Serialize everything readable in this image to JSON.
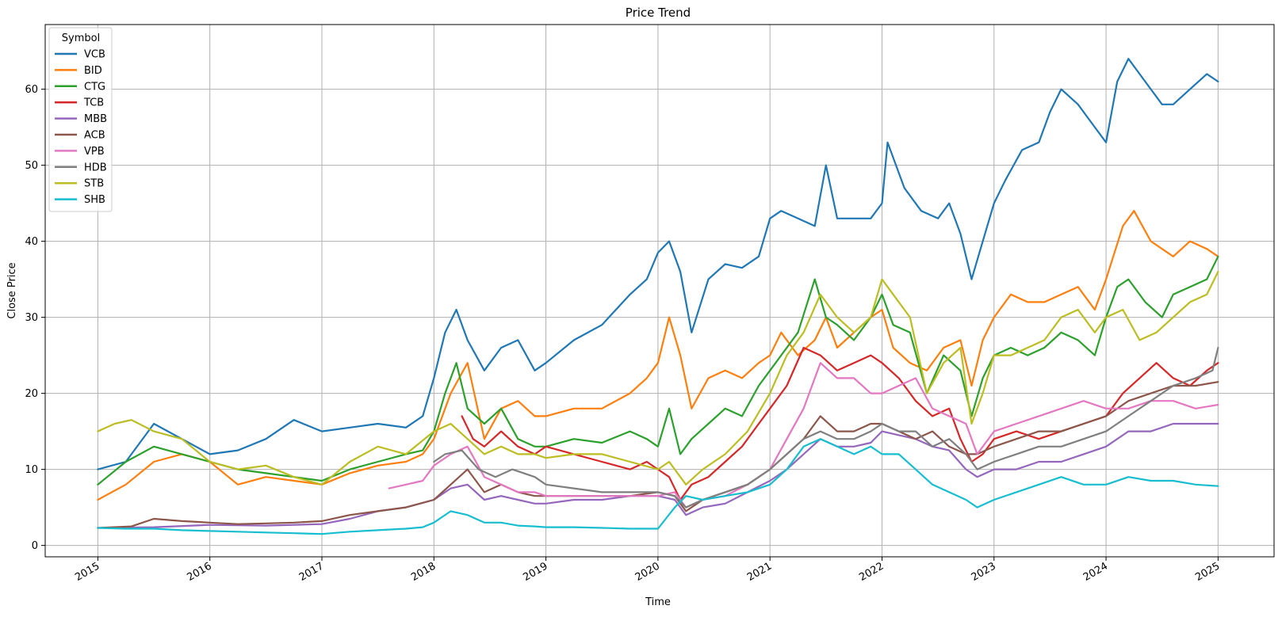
{
  "chart_data": {
    "type": "line",
    "title": "Price Trend",
    "xlabel": "Time",
    "ylabel": "Close Price",
    "xlim": [
      2014.53,
      2025.5
    ],
    "ylim": [
      -1.5,
      68.5
    ],
    "x_ticks": [
      2015,
      2016,
      2017,
      2018,
      2019,
      2020,
      2021,
      2022,
      2023,
      2024,
      2025
    ],
    "y_ticks": [
      0,
      10,
      20,
      30,
      40,
      50,
      60
    ],
    "grid": true,
    "legend_title": "Symbol",
    "legend_position": "top-left",
    "series": [
      {
        "name": "VCB",
        "color": "#1f77b4",
        "x": [
          2015.0,
          2015.25,
          2015.5,
          2015.75,
          2016.0,
          2016.25,
          2016.5,
          2016.75,
          2017.0,
          2017.25,
          2017.5,
          2017.75,
          2017.9,
          2018.0,
          2018.1,
          2018.2,
          2018.3,
          2018.45,
          2018.6,
          2018.75,
          2018.9,
          2019.0,
          2019.25,
          2019.5,
          2019.75,
          2019.9,
          2020.0,
          2020.1,
          2020.2,
          2020.3,
          2020.45,
          2020.6,
          2020.75,
          2020.9,
          2021.0,
          2021.1,
          2021.25,
          2021.4,
          2021.5,
          2021.6,
          2021.75,
          2021.9,
          2022.0,
          2022.05,
          2022.2,
          2022.35,
          2022.5,
          2022.6,
          2022.7,
          2022.8,
          2022.9,
          2023.0,
          2023.1,
          2023.25,
          2023.4,
          2023.5,
          2023.6,
          2023.75,
          2023.9,
          2024.0,
          2024.1,
          2024.2,
          2024.3,
          2024.5,
          2024.6,
          2024.75,
          2024.9,
          2025.0
        ],
        "y": [
          10,
          11,
          16,
          14,
          12,
          12.5,
          14,
          16.5,
          15,
          15.5,
          16,
          15.5,
          17,
          22,
          28,
          31,
          27,
          23,
          26,
          27,
          23,
          24,
          27,
          29,
          33,
          35,
          38.5,
          40,
          36,
          28,
          35,
          37,
          36.5,
          38,
          43,
          44,
          43,
          42,
          50,
          43,
          43,
          43,
          45,
          53,
          47,
          44,
          43,
          45,
          41,
          35,
          40,
          45,
          48,
          52,
          53,
          57,
          60,
          58,
          55,
          53,
          61,
          64,
          62,
          58,
          58,
          60,
          62,
          61
        ]
      },
      {
        "name": "BID",
        "color": "#ff7f0e",
        "x": [
          2015.0,
          2015.25,
          2015.5,
          2015.75,
          2016.0,
          2016.25,
          2016.5,
          2016.75,
          2017.0,
          2017.25,
          2017.5,
          2017.75,
          2017.9,
          2018.0,
          2018.15,
          2018.3,
          2018.45,
          2018.6,
          2018.75,
          2018.9,
          2019.0,
          2019.25,
          2019.5,
          2019.75,
          2019.9,
          2020.0,
          2020.1,
          2020.2,
          2020.3,
          2020.45,
          2020.6,
          2020.75,
          2020.9,
          2021.0,
          2021.1,
          2021.25,
          2021.4,
          2021.5,
          2021.6,
          2021.75,
          2021.9,
          2022.0,
          2022.1,
          2022.25,
          2022.4,
          2022.55,
          2022.7,
          2022.8,
          2022.9,
          2023.0,
          2023.15,
          2023.3,
          2023.45,
          2023.6,
          2023.75,
          2023.9,
          2024.0,
          2024.15,
          2024.25,
          2024.4,
          2024.5,
          2024.6,
          2024.75,
          2024.9,
          2025.0
        ],
        "y": [
          6,
          8,
          11,
          12,
          11,
          8,
          9,
          8.5,
          8,
          9.5,
          10.5,
          11,
          12,
          14,
          20,
          24,
          14,
          18,
          19,
          17,
          17,
          18,
          18,
          20,
          22,
          24,
          30,
          25,
          18,
          22,
          23,
          22,
          24,
          25,
          28,
          25,
          27,
          30,
          26,
          28,
          30,
          31,
          26,
          24,
          23,
          26,
          27,
          21,
          27,
          30,
          33,
          32,
          32,
          33,
          34,
          31,
          35,
          42,
          44,
          40,
          39,
          38,
          40,
          39,
          38
        ]
      },
      {
        "name": "CTG",
        "color": "#2ca02c",
        "x": [
          2015.0,
          2015.25,
          2015.5,
          2015.75,
          2016.0,
          2016.25,
          2016.5,
          2016.75,
          2017.0,
          2017.25,
          2017.5,
          2017.75,
          2017.9,
          2018.0,
          2018.1,
          2018.2,
          2018.3,
          2018.45,
          2018.6,
          2018.75,
          2018.9,
          2019.0,
          2019.25,
          2019.5,
          2019.75,
          2019.9,
          2020.0,
          2020.1,
          2020.2,
          2020.3,
          2020.45,
          2020.6,
          2020.75,
          2020.9,
          2021.0,
          2021.1,
          2021.25,
          2021.4,
          2021.5,
          2021.6,
          2021.75,
          2021.9,
          2022.0,
          2022.1,
          2022.25,
          2022.4,
          2022.55,
          2022.7,
          2022.8,
          2022.9,
          2023.0,
          2023.15,
          2023.3,
          2023.45,
          2023.6,
          2023.75,
          2023.9,
          2024.0,
          2024.1,
          2024.2,
          2024.35,
          2024.5,
          2024.6,
          2024.75,
          2024.9,
          2025.0
        ],
        "y": [
          8,
          11,
          13,
          12,
          11,
          10,
          9.5,
          9,
          8.5,
          10,
          11,
          12,
          12.5,
          15,
          20,
          24,
          18,
          16,
          18,
          14,
          13,
          13,
          14,
          13.5,
          15,
          14,
          13,
          18,
          12,
          14,
          16,
          18,
          17,
          21,
          23,
          25,
          28,
          35,
          30,
          29,
          27,
          30,
          33,
          29,
          28,
          20,
          25,
          23,
          17,
          22,
          25,
          26,
          25,
          26,
          28,
          27,
          25,
          30,
          34,
          35,
          32,
          30,
          33,
          34,
          35,
          38
        ]
      },
      {
        "name": "TCB",
        "color": "#d62728",
        "x": [
          2018.25,
          2018.35,
          2018.45,
          2018.6,
          2018.75,
          2018.9,
          2019.0,
          2019.25,
          2019.5,
          2019.75,
          2019.9,
          2020.0,
          2020.1,
          2020.2,
          2020.3,
          2020.45,
          2020.6,
          2020.75,
          2020.9,
          2021.0,
          2021.15,
          2021.3,
          2021.45,
          2021.6,
          2021.75,
          2021.9,
          2022.0,
          2022.15,
          2022.3,
          2022.45,
          2022.6,
          2022.7,
          2022.8,
          2022.9,
          2023.0,
          2023.2,
          2023.4,
          2023.6,
          2023.8,
          2024.0,
          2024.15,
          2024.3,
          2024.45,
          2024.6,
          2024.75,
          2024.9,
          2025.0
        ],
        "y": [
          17,
          14,
          13,
          15,
          13,
          12,
          13,
          12,
          11,
          10,
          11,
          10,
          9,
          6,
          8,
          9,
          11,
          13,
          16,
          18,
          21,
          26,
          25,
          23,
          24,
          25,
          24,
          22,
          19,
          17,
          18,
          14,
          11,
          12,
          14,
          15,
          14,
          15,
          16,
          17,
          20,
          22,
          24,
          22,
          21,
          23,
          24
        ]
      },
      {
        "name": "MBB",
        "color": "#9467bd",
        "x": [
          2015.0,
          2015.5,
          2016.0,
          2016.5,
          2017.0,
          2017.25,
          2017.5,
          2017.75,
          2018.0,
          2018.15,
          2018.3,
          2018.45,
          2018.6,
          2018.75,
          2018.9,
          2019.0,
          2019.25,
          2019.5,
          2019.75,
          2020.0,
          2020.15,
          2020.25,
          2020.4,
          2020.6,
          2020.8,
          2021.0,
          2021.15,
          2021.3,
          2021.45,
          2021.6,
          2021.75,
          2021.9,
          2022.0,
          2022.15,
          2022.3,
          2022.45,
          2022.6,
          2022.75,
          2022.85,
          2023.0,
          2023.2,
          2023.4,
          2023.6,
          2023.8,
          2024.0,
          2024.2,
          2024.4,
          2024.6,
          2024.8,
          2025.0
        ],
        "y": [
          2.3,
          2.4,
          2.7,
          2.6,
          2.8,
          3.5,
          4.5,
          5,
          6,
          7.5,
          8,
          6,
          6.5,
          6,
          5.5,
          5.5,
          6,
          6,
          6.5,
          6.5,
          6,
          4,
          5,
          5.5,
          7,
          8.5,
          10,
          12,
          14,
          13,
          13,
          13.5,
          15,
          14.5,
          14,
          13,
          12.5,
          10,
          9,
          10,
          10,
          11,
          11,
          12,
          13,
          15,
          15,
          16,
          16,
          16
        ]
      },
      {
        "name": "ACB",
        "color": "#8c564b",
        "x": [
          2015.0,
          2015.3,
          2015.5,
          2015.75,
          2016.0,
          2016.25,
          2016.5,
          2016.75,
          2017.0,
          2017.25,
          2017.5,
          2017.75,
          2018.0,
          2018.15,
          2018.3,
          2018.45,
          2018.6,
          2018.75,
          2018.9,
          2019.0,
          2019.25,
          2019.5,
          2019.75,
          2020.0,
          2020.15,
          2020.25,
          2020.4,
          2020.6,
          2020.8,
          2021.0,
          2021.15,
          2021.3,
          2021.45,
          2021.6,
          2021.75,
          2021.9,
          2022.0,
          2022.15,
          2022.3,
          2022.45,
          2022.6,
          2022.75,
          2022.85,
          2023.0,
          2023.2,
          2023.4,
          2023.6,
          2023.8,
          2024.0,
          2024.2,
          2024.4,
          2024.6,
          2024.8,
          2025.0
        ],
        "y": [
          2.3,
          2.5,
          3.5,
          3.2,
          3,
          2.8,
          2.9,
          3,
          3.2,
          4,
          4.5,
          5,
          6,
          8,
          10,
          7,
          8,
          7,
          6.5,
          6.5,
          6.5,
          6.5,
          6.5,
          7,
          6.5,
          4.5,
          6,
          7,
          8,
          10,
          12,
          14,
          17,
          15,
          15,
          16,
          16,
          15,
          14,
          15,
          13,
          12,
          12,
          13,
          14,
          15,
          15,
          16,
          17,
          19,
          20,
          21,
          21,
          21.5
        ]
      },
      {
        "name": "VPB",
        "color": "#e377c2",
        "x": [
          2017.6,
          2017.75,
          2017.9,
          2018.0,
          2018.15,
          2018.3,
          2018.45,
          2018.6,
          2018.75,
          2018.9,
          2019.0,
          2019.25,
          2019.5,
          2019.75,
          2020.0,
          2020.15,
          2020.25,
          2020.4,
          2020.6,
          2020.8,
          2021.0,
          2021.15,
          2021.3,
          2021.45,
          2021.6,
          2021.75,
          2021.9,
          2022.0,
          2022.15,
          2022.3,
          2022.45,
          2022.6,
          2022.75,
          2022.85,
          2023.0,
          2023.2,
          2023.4,
          2023.6,
          2023.8,
          2024.0,
          2024.2,
          2024.4,
          2024.6,
          2024.8,
          2025.0
        ],
        "y": [
          7.5,
          8,
          8.5,
          10.5,
          12,
          13,
          9,
          8,
          7,
          7,
          6.5,
          6.5,
          6.5,
          6.5,
          6.5,
          7,
          5,
          6,
          6.5,
          8,
          10,
          14,
          18,
          24,
          22,
          22,
          20,
          20,
          21,
          22,
          18,
          17,
          16,
          12,
          15,
          16,
          17,
          18,
          19,
          18,
          18,
          19,
          19,
          18,
          18.5
        ]
      },
      {
        "name": "HDB",
        "color": "#7f7f7f",
        "x": [
          2018.0,
          2018.1,
          2018.25,
          2018.4,
          2018.55,
          2018.7,
          2018.9,
          2019.0,
          2019.25,
          2019.5,
          2019.75,
          2020.0,
          2020.15,
          2020.25,
          2020.4,
          2020.6,
          2020.8,
          2021.0,
          2021.15,
          2021.3,
          2021.45,
          2021.6,
          2021.75,
          2021.9,
          2022.0,
          2022.15,
          2022.3,
          2022.45,
          2022.6,
          2022.75,
          2022.85,
          2023.0,
          2023.2,
          2023.4,
          2023.6,
          2023.8,
          2024.0,
          2024.2,
          2024.4,
          2024.6,
          2024.8,
          2024.95,
          2025.0
        ],
        "y": [
          11,
          12,
          12.5,
          10,
          9,
          10,
          9,
          8,
          7.5,
          7,
          7,
          7,
          6.5,
          5,
          6,
          7,
          8,
          10,
          12,
          14,
          15,
          14,
          14,
          15,
          16,
          15,
          15,
          13,
          14,
          12,
          10,
          11,
          12,
          13,
          13,
          14,
          15,
          17,
          19,
          21,
          22,
          23,
          26
        ]
      },
      {
        "name": "STB",
        "color": "#bcbd22",
        "x": [
          2015.0,
          2015.15,
          2015.3,
          2015.5,
          2015.75,
          2016.0,
          2016.25,
          2016.5,
          2016.75,
          2017.0,
          2017.25,
          2017.5,
          2017.75,
          2018.0,
          2018.15,
          2018.3,
          2018.45,
          2018.6,
          2018.75,
          2018.9,
          2019.0,
          2019.25,
          2019.5,
          2019.75,
          2020.0,
          2020.1,
          2020.25,
          2020.4,
          2020.6,
          2020.8,
          2021.0,
          2021.15,
          2021.3,
          2021.45,
          2021.6,
          2021.75,
          2021.9,
          2022.0,
          2022.1,
          2022.25,
          2022.4,
          2022.55,
          2022.7,
          2022.8,
          2022.9,
          2023.0,
          2023.15,
          2023.3,
          2023.45,
          2023.6,
          2023.75,
          2023.9,
          2024.0,
          2024.15,
          2024.3,
          2024.45,
          2024.6,
          2024.75,
          2024.9,
          2025.0
        ],
        "y": [
          15,
          16,
          16.5,
          15,
          14,
          11,
          10,
          10.5,
          9,
          8,
          11,
          13,
          12,
          15,
          16,
          14,
          12,
          13,
          12,
          12,
          11.5,
          12,
          12,
          11,
          10,
          11,
          8,
          10,
          12,
          15,
          20,
          25,
          28,
          33,
          30,
          28,
          30,
          35,
          33,
          30,
          20,
          24,
          26,
          16,
          20,
          25,
          25,
          26,
          27,
          30,
          31,
          28,
          30,
          31,
          27,
          28,
          30,
          32,
          33,
          36
        ]
      },
      {
        "name": "SHB",
        "color": "#17becf",
        "x": [
          2015.0,
          2015.25,
          2015.5,
          2015.75,
          2016.0,
          2016.25,
          2016.5,
          2016.75,
          2017.0,
          2017.25,
          2017.5,
          2017.75,
          2017.9,
          2018.0,
          2018.15,
          2018.3,
          2018.45,
          2018.6,
          2018.75,
          2018.9,
          2019.0,
          2019.25,
          2019.5,
          2019.75,
          2020.0,
          2020.15,
          2020.25,
          2020.4,
          2020.6,
          2020.8,
          2021.0,
          2021.15,
          2021.3,
          2021.45,
          2021.6,
          2021.75,
          2021.9,
          2022.0,
          2022.15,
          2022.3,
          2022.45,
          2022.6,
          2022.75,
          2022.85,
          2023.0,
          2023.2,
          2023.4,
          2023.6,
          2023.8,
          2024.0,
          2024.2,
          2024.4,
          2024.6,
          2024.8,
          2025.0
        ],
        "y": [
          2.3,
          2.2,
          2.2,
          2,
          1.9,
          1.8,
          1.7,
          1.6,
          1.5,
          1.8,
          2,
          2.2,
          2.4,
          3,
          4.5,
          4,
          3,
          3,
          2.6,
          2.5,
          2.4,
          2.4,
          2.3,
          2.2,
          2.2,
          5,
          6.5,
          6,
          6.5,
          7,
          8,
          10,
          13,
          14,
          13,
          12,
          13,
          12,
          12,
          10,
          8,
          7,
          6,
          5,
          6,
          7,
          8,
          9,
          8,
          8,
          9,
          8.5,
          8.5,
          8,
          7.8
        ]
      }
    ]
  }
}
